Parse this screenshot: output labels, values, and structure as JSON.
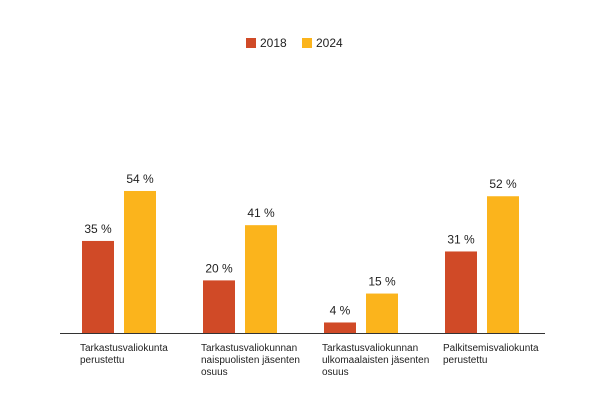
{
  "chart_data": {
    "type": "bar",
    "categories": [
      [
        "Tarkastusvaliokunta",
        "perustettu"
      ],
      [
        "Tarkastusvaliokunnan",
        "naispuolisten jäsenten",
        "osuus"
      ],
      [
        "Tarkastusvaliokunnan",
        "ulkomaalaisten jäsenten",
        "osuus"
      ],
      [
        "Palkitsemisvaliokunta",
        "perustettu"
      ]
    ],
    "series": [
      {
        "name": "2018",
        "color": "#d04a27",
        "values": [
          35,
          20,
          4,
          31
        ],
        "labels": [
          "35 %",
          "20 %",
          "4 %",
          "31 %"
        ]
      },
      {
        "name": "2024",
        "color": "#fbb41c",
        "values": [
          54,
          41,
          15,
          52
        ],
        "labels": [
          "54 %",
          "41 %",
          "15 %",
          "52 %"
        ]
      }
    ],
    "ylim": [
      0,
      100
    ],
    "grid": false,
    "legend_position": "top-center"
  }
}
